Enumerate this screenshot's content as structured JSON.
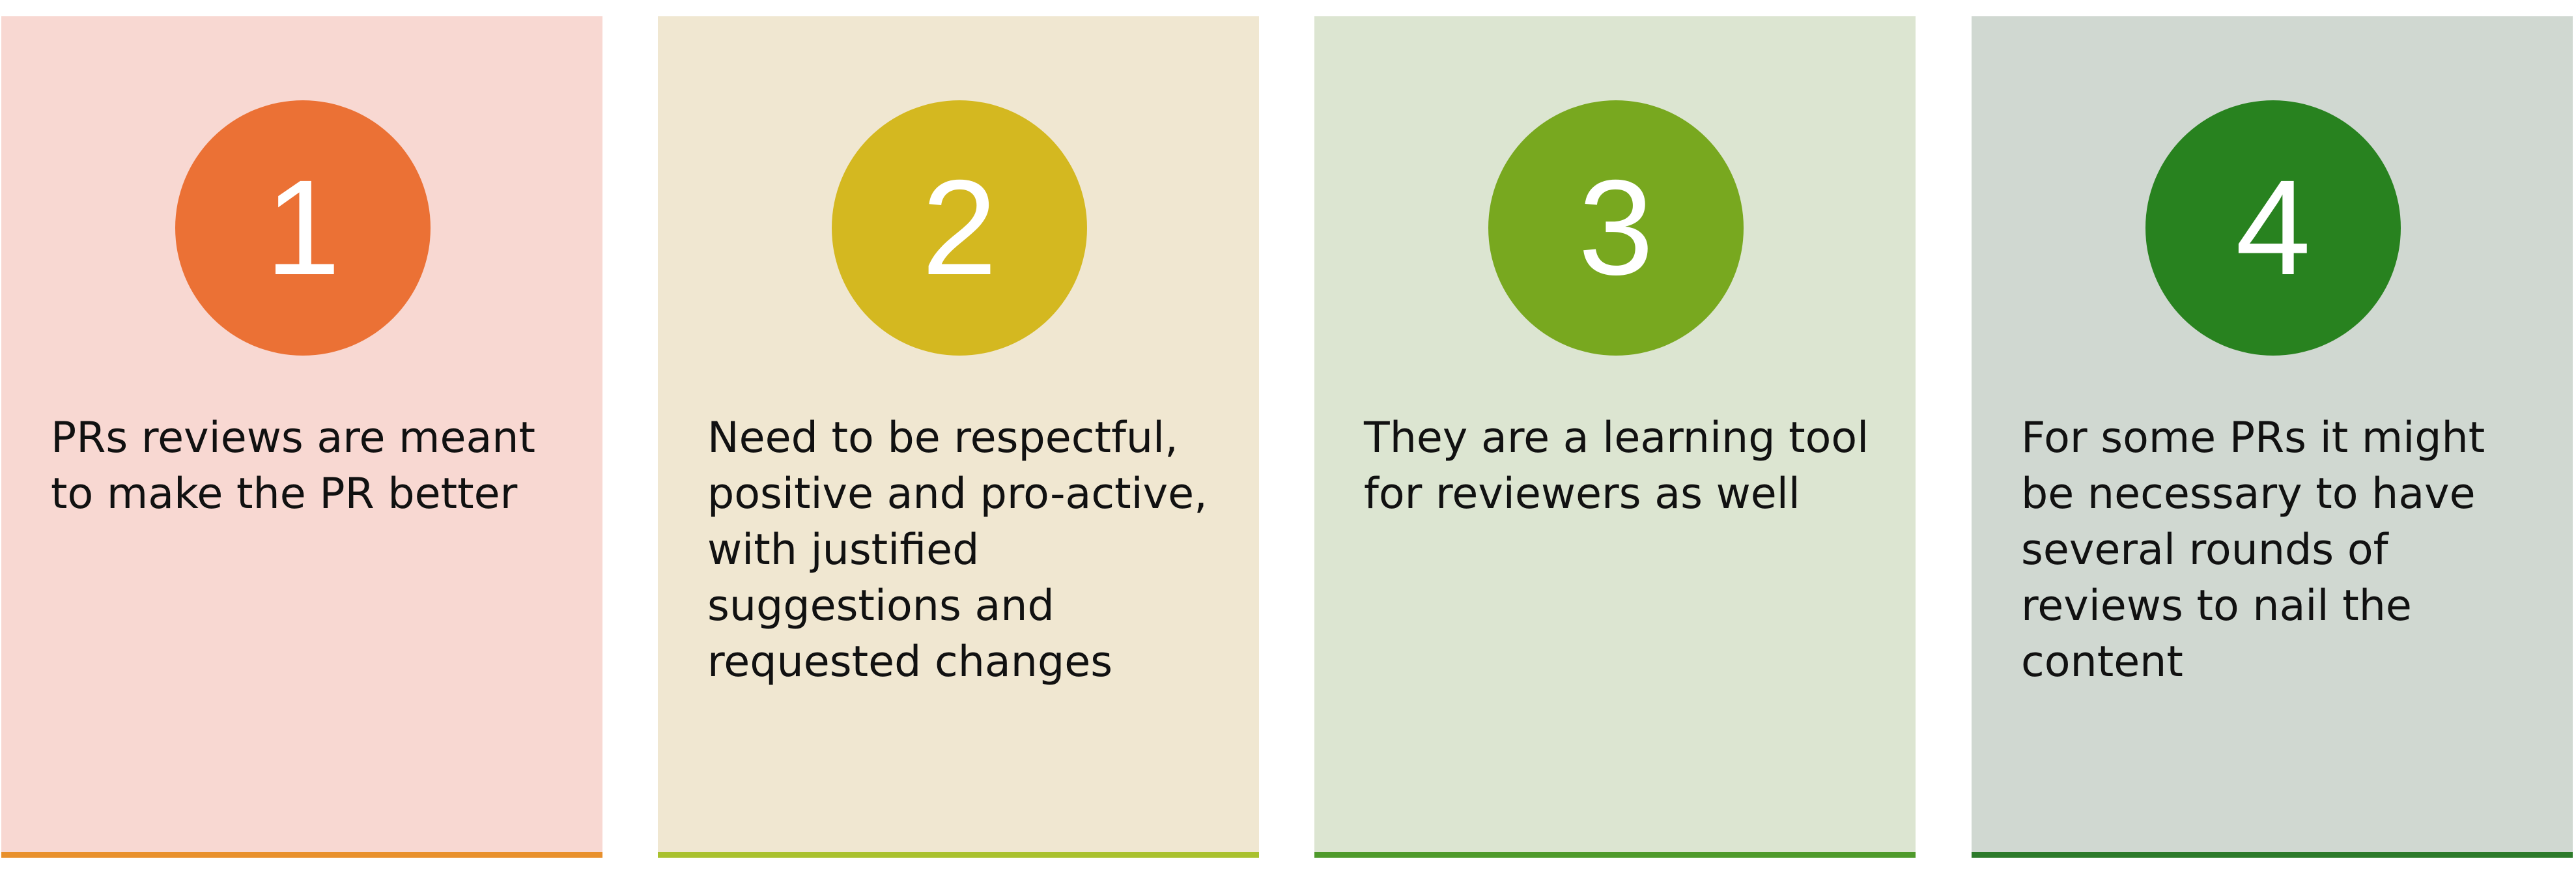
{
  "cards": [
    {
      "number": "1",
      "text": "PRs reviews are meant to make the PR better",
      "background": "#F8D8D2",
      "circle_color": "#EB7135",
      "bar_color": "#E8902C"
    },
    {
      "number": "2",
      "text": "Need to be respectful, positive and pro-active, with justified suggestions and requested changes",
      "background": "#F0E7D1",
      "circle_color": "#D4B820",
      "bar_color": "#A9C12E"
    },
    {
      "number": "3",
      "text": "They are a learning tool for reviewers as well",
      "background": "#DCE5D1",
      "circle_color": "#78A81F",
      "bar_color": "#4E9A2B"
    },
    {
      "number": "4",
      "text": "For some PRs it might be necessary to have several rounds of reviews to nail the content",
      "background": "#D0D8D1",
      "circle_color": "#28821F",
      "bar_color": "#2C7A2A"
    }
  ]
}
